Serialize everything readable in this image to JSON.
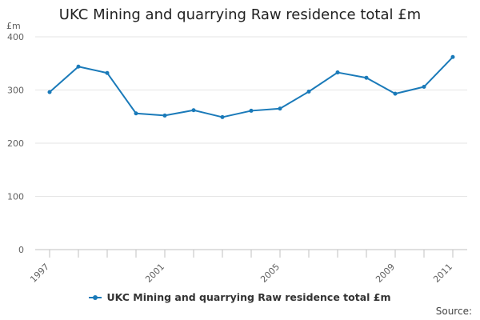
{
  "chart_data": {
    "type": "line",
    "title": "UKC Mining and quarrying Raw residence total £m",
    "ylabel": "£m",
    "xlabel": "",
    "ylim": [
      0,
      400
    ],
    "yticks": [
      0,
      100,
      200,
      300,
      400
    ],
    "xticks": [
      "1997",
      "2001",
      "2005",
      "2009",
      "2011"
    ],
    "x": [
      1997,
      1998,
      1999,
      2000,
      2001,
      2002,
      2003,
      2004,
      2005,
      2006,
      2007,
      2008,
      2009,
      2010,
      2011
    ],
    "series": [
      {
        "name": "UKC Mining and quarrying Raw residence total £m",
        "color": "#1a7ab9",
        "values": [
          296,
          344,
          332,
          256,
          252,
          262,
          249,
          261,
          265,
          297,
          333,
          323,
          293,
          306,
          362
        ]
      }
    ],
    "grid": true,
    "legend_position": "bottom"
  },
  "source_label": "Source:"
}
